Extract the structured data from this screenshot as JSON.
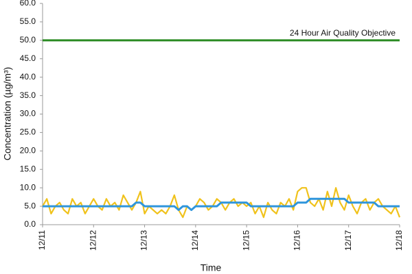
{
  "chart_data": {
    "type": "line",
    "x_label": "Time",
    "y_label": "Concentration (µg/m³)",
    "x": [
      0,
      2,
      4,
      6,
      8,
      10,
      12,
      14,
      16,
      18,
      20,
      22,
      24,
      26,
      28,
      30,
      32,
      34,
      36,
      38,
      40,
      42,
      44,
      46,
      48,
      50,
      52,
      54,
      56,
      58,
      60,
      62,
      64,
      66,
      68,
      70,
      72,
      74,
      76,
      78,
      80,
      82,
      84,
      86,
      88,
      90,
      92,
      94,
      96,
      98,
      100,
      102,
      104,
      106,
      108,
      110,
      112,
      114,
      116,
      118,
      120,
      122,
      124,
      126,
      128,
      130,
      132,
      134,
      136,
      138,
      140,
      142,
      144,
      146,
      148,
      150,
      152,
      154,
      156,
      158,
      160,
      162,
      164,
      166,
      168
    ],
    "series": [
      {
        "color": "#f0c21b",
        "values": [
          5,
          7,
          3,
          5,
          6,
          4,
          3,
          7,
          5,
          6,
          3,
          5,
          7,
          5,
          4,
          7,
          5,
          6,
          4,
          8,
          6,
          4,
          6,
          9,
          3,
          5,
          4,
          3,
          4,
          3,
          5,
          8,
          4,
          2,
          5,
          4,
          5,
          7,
          6,
          4,
          5,
          7,
          6,
          4,
          6,
          7,
          5,
          6,
          5,
          6,
          3,
          5,
          2,
          6,
          4,
          3,
          6,
          5,
          7,
          4,
          9,
          10,
          10,
          6,
          5,
          7,
          4,
          9,
          5,
          10,
          6,
          4,
          8,
          5,
          3,
          6,
          7,
          4,
          6,
          7,
          5,
          4,
          3,
          5,
          2
        ]
      },
      {
        "color": "#2e95dc",
        "values": [
          5,
          5,
          5,
          5,
          5,
          5,
          5,
          5,
          5,
          5,
          5,
          5,
          5,
          5,
          5,
          5,
          5,
          5,
          5,
          5,
          5,
          5,
          6,
          6,
          5,
          5,
          5,
          5,
          5,
          5,
          5,
          5,
          4,
          5,
          5,
          4,
          5,
          5,
          5,
          5,
          5,
          5,
          6,
          6,
          6,
          6,
          6,
          6,
          6,
          5,
          5,
          5,
          5,
          5,
          5,
          5,
          5,
          5,
          5,
          5,
          6,
          6,
          6,
          7,
          7,
          7,
          7,
          7,
          7,
          7,
          7,
          7,
          6,
          6,
          6,
          6,
          6,
          6,
          6,
          5,
          5,
          5,
          5,
          5,
          5
        ]
      }
    ],
    "reference_line": {
      "value": 50,
      "label": "24 Hour Air Quality Objective",
      "color": "#2a8a22"
    },
    "xlim": [
      0,
      168
    ],
    "xticks": [
      {
        "value": 0,
        "label": "12/11"
      },
      {
        "value": 24,
        "label": "12/12"
      },
      {
        "value": 48,
        "label": "12/13"
      },
      {
        "value": 72,
        "label": "12/14"
      },
      {
        "value": 96,
        "label": "12/15"
      },
      {
        "value": 120,
        "label": "12/16"
      },
      {
        "value": 144,
        "label": "12/17"
      },
      {
        "value": 168,
        "label": "12/18"
      }
    ],
    "ylim": [
      0,
      60
    ],
    "yticks": [
      {
        "value": 0,
        "label": "0.0"
      },
      {
        "value": 5,
        "label": "5.0"
      },
      {
        "value": 10,
        "label": "10.0"
      },
      {
        "value": 15,
        "label": "15.0"
      },
      {
        "value": 20,
        "label": "20.0"
      },
      {
        "value": 25,
        "label": "25.0"
      },
      {
        "value": 30,
        "label": "30.0"
      },
      {
        "value": 35,
        "label": "35.0"
      },
      {
        "value": 40,
        "label": "40.0"
      },
      {
        "value": 45,
        "label": "45.0"
      },
      {
        "value": 50,
        "label": "50.0"
      },
      {
        "value": 55,
        "label": "55.0"
      },
      {
        "value": 60,
        "label": "60.0"
      }
    ]
  }
}
